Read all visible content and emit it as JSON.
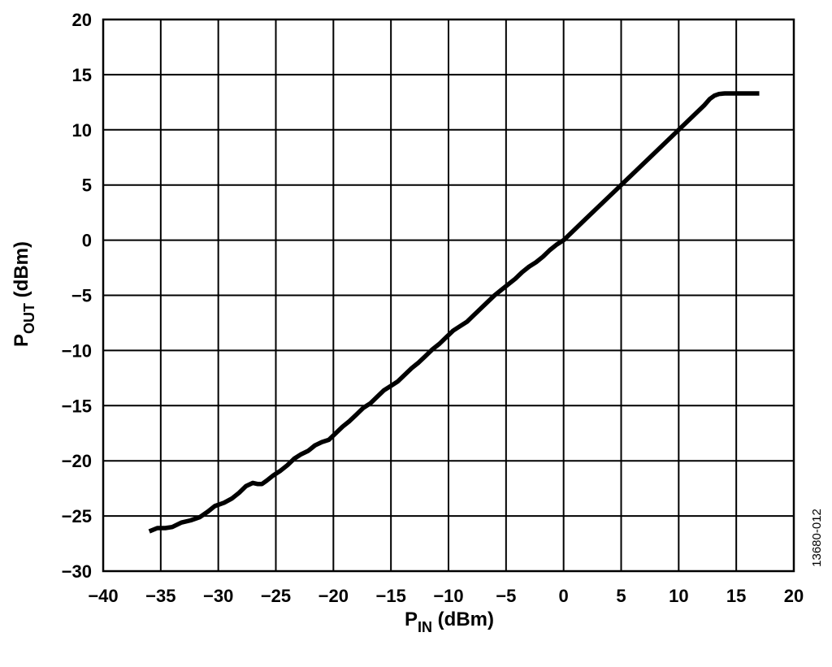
{
  "chart_data": {
    "type": "line",
    "xlabel": {
      "main": "P",
      "sub": "IN",
      "unit": " (dBm)"
    },
    "ylabel": {
      "main": "P",
      "sub": "OUT",
      "unit": " (dBm)"
    },
    "xlim": [
      -40,
      20
    ],
    "ylim": [
      -30,
      20
    ],
    "x_ticks": [
      "−40",
      "−35",
      "−30",
      "−25",
      "−20",
      "−15",
      "−10",
      "−5",
      "0",
      "5",
      "10",
      "15",
      "20"
    ],
    "y_ticks": [
      "20",
      "15",
      "10",
      "5",
      "0",
      "−5",
      "−10",
      "−15",
      "−20",
      "−25",
      "−30"
    ],
    "grid": true,
    "figure_id": "13680-012",
    "series": [
      {
        "x": [
          -36,
          -35.3,
          -34.6,
          -34.0,
          -33.2,
          -32.4,
          -31.6,
          -30.9,
          -30.3,
          -29.5,
          -28.8,
          -28.2,
          -27.6,
          -27.0,
          -26.6,
          -26.2,
          -25.8,
          -25.2,
          -24.6,
          -24.0,
          -23.4,
          -22.8,
          -22.2,
          -21.6,
          -21.0,
          -20.4,
          -19.8,
          -19.2,
          -18.6,
          -18.0,
          -17.4,
          -16.8,
          -16.2,
          -15.6,
          -15.0,
          -14.4,
          -13.8,
          -13.2,
          -12.6,
          -12.0,
          -11.4,
          -10.8,
          -10.2,
          -9.6,
          -9.0,
          -8.4,
          -7.8,
          -7.2,
          -6.6,
          -6.0,
          -5.4,
          -4.8,
          -4.2,
          -3.6,
          -3.0,
          -2.4,
          -1.8,
          -1.2,
          -0.6,
          0,
          2,
          4,
          6,
          8,
          10,
          11.5,
          12.2,
          12.7,
          13.1,
          13.5,
          14.0,
          14.8,
          15.5,
          16.2,
          17.0
        ],
        "y": [
          -26.4,
          -26.1,
          -26.1,
          -26.0,
          -25.6,
          -25.4,
          -25.1,
          -24.6,
          -24.1,
          -23.8,
          -23.4,
          -22.9,
          -22.3,
          -22.0,
          -22.1,
          -22.1,
          -21.8,
          -21.3,
          -20.9,
          -20.4,
          -19.8,
          -19.4,
          -19.1,
          -18.6,
          -18.3,
          -18.1,
          -17.5,
          -16.9,
          -16.4,
          -15.8,
          -15.2,
          -14.8,
          -14.2,
          -13.6,
          -13.2,
          -12.8,
          -12.2,
          -11.6,
          -11.1,
          -10.5,
          -9.9,
          -9.4,
          -8.8,
          -8.2,
          -7.8,
          -7.4,
          -6.8,
          -6.2,
          -5.6,
          -5.0,
          -4.5,
          -4.0,
          -3.5,
          -2.9,
          -2.4,
          -2.0,
          -1.5,
          -0.9,
          -0.4,
          0.0,
          2.0,
          4.0,
          6.0,
          8.0,
          10.0,
          11.5,
          12.2,
          12.8,
          13.1,
          13.25,
          13.3,
          13.3,
          13.3,
          13.3,
          13.3
        ]
      }
    ]
  }
}
